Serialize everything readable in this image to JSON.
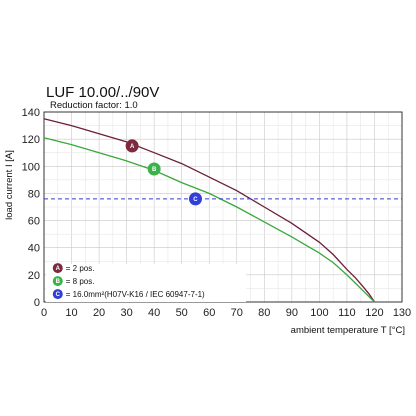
{
  "chart_data": {
    "type": "line",
    "title": "LUF 10.00/../90V",
    "subtitle": "Reduction factor: 1.0",
    "xlabel": "ambient temperature T [°C]",
    "ylabel": "load current I [A]",
    "xlim": [
      0,
      130
    ],
    "ylim": [
      0,
      140
    ],
    "xticks": [
      0,
      10,
      20,
      30,
      40,
      50,
      60,
      70,
      80,
      90,
      100,
      110,
      120,
      130
    ],
    "yticks": [
      0,
      20,
      40,
      60,
      80,
      100,
      120,
      140
    ],
    "grid": true,
    "series": [
      {
        "name": "= 2 pos.",
        "marker": "A",
        "color": "#6b1f3a",
        "marker_color": "#7b2a40",
        "marker_at": [
          32,
          115
        ],
        "x": [
          0,
          10,
          20,
          30,
          40,
          50,
          60,
          70,
          80,
          90,
          100,
          105,
          110,
          113,
          116,
          118,
          119,
          120
        ],
        "y": [
          135,
          130,
          124,
          118,
          110,
          102,
          92,
          82,
          70,
          58,
          44,
          35,
          24,
          18,
          11,
          6,
          3,
          0
        ]
      },
      {
        "name": "= 8 pos.",
        "marker": "B",
        "color": "#3aa83a",
        "marker_color": "#3cb34a",
        "marker_at": [
          40,
          98
        ],
        "x": [
          0,
          10,
          20,
          30,
          40,
          50,
          60,
          70,
          80,
          90,
          100,
          105,
          110,
          113,
          116,
          118,
          119,
          120
        ],
        "y": [
          121,
          116,
          110,
          104,
          97,
          88,
          80,
          70,
          59,
          48,
          36,
          29,
          20,
          14,
          8,
          4,
          2,
          0
        ]
      },
      {
        "name": "= 16.0mm²(H07V-K16 / IEC 60947-7-1)",
        "marker": "C",
        "color": "#3a3ad0",
        "marker_color": "#2f3fd8",
        "marker_at": [
          55,
          76
        ],
        "style": "dashed",
        "x": [
          0,
          130
        ],
        "y": [
          76,
          76
        ]
      }
    ],
    "legend_position": "bottom-left"
  }
}
